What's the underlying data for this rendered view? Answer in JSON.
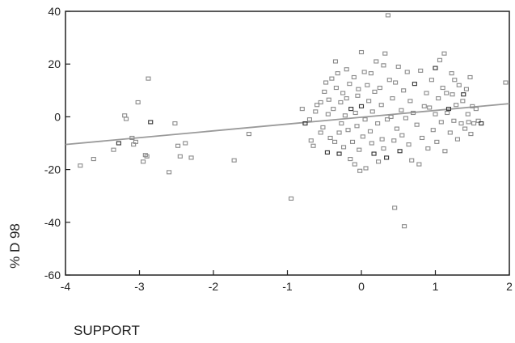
{
  "chart_data": {
    "type": "scatter",
    "title": "",
    "xlabel": "SUPPORT",
    "ylabel": "% D 98",
    "xlim": [
      -4,
      2
    ],
    "ylim": [
      -60,
      40
    ],
    "x_ticks": [
      -4,
      -3,
      -2,
      -1,
      0,
      1,
      2
    ],
    "x_tick_labels": [
      "-4",
      "-3",
      "-2",
      "-1",
      "0",
      "1",
      "2"
    ],
    "y_ticks": [
      -60,
      -40,
      -20,
      0,
      20,
      40
    ],
    "y_tick_labels": [
      "-60",
      "-40",
      "-20",
      "0",
      "20",
      "40"
    ],
    "grid": false,
    "legend": "none",
    "colors": {
      "points": "#8a8a8a",
      "points_dark": "#333333",
      "fit_line": "#9a9a9a",
      "frame": "#222222"
    },
    "fit_line": {
      "from": [
        -4,
        -10.5
      ],
      "to": [
        2,
        5
      ]
    },
    "points": [
      [
        -3.8,
        -18.5
      ],
      [
        -3.62,
        -16
      ],
      [
        -3.35,
        -12.5
      ],
      [
        -3.28,
        -10
      ],
      [
        -3.2,
        0.5
      ],
      [
        -3.18,
        -0.8
      ],
      [
        -3.1,
        -8
      ],
      [
        -3.08,
        -10.5
      ],
      [
        -3.05,
        -9.5
      ],
      [
        -3.02,
        5.5
      ],
      [
        -2.95,
        -17
      ],
      [
        -2.92,
        -14.5
      ],
      [
        -2.9,
        -15
      ],
      [
        -2.88,
        14.5
      ],
      [
        -2.85,
        -2
      ],
      [
        -2.6,
        -21
      ],
      [
        -2.52,
        -2.5
      ],
      [
        -2.48,
        -11
      ],
      [
        -2.45,
        -15
      ],
      [
        -2.38,
        -10
      ],
      [
        -2.3,
        -15.5
      ],
      [
        -1.72,
        -16.5
      ],
      [
        -1.52,
        -6.5
      ],
      [
        -0.95,
        -31
      ],
      [
        -0.8,
        3
      ],
      [
        -0.76,
        -2.5
      ],
      [
        -0.7,
        -1
      ],
      [
        -0.68,
        -9
      ],
      [
        -0.65,
        -11
      ],
      [
        -0.62,
        2
      ],
      [
        -0.6,
        4.5
      ],
      [
        -0.55,
        5.5
      ],
      [
        -0.55,
        -6
      ],
      [
        -0.52,
        -4
      ],
      [
        -0.5,
        9.5
      ],
      [
        -0.48,
        13
      ],
      [
        -0.46,
        -13.5
      ],
      [
        -0.45,
        1
      ],
      [
        -0.44,
        6.5
      ],
      [
        -0.42,
        -8
      ],
      [
        -0.4,
        14.5
      ],
      [
        -0.38,
        3
      ],
      [
        -0.36,
        -9.5
      ],
      [
        -0.35,
        21
      ],
      [
        -0.34,
        11
      ],
      [
        -0.32,
        16.5
      ],
      [
        -0.3,
        -6
      ],
      [
        -0.3,
        -14
      ],
      [
        -0.28,
        5.5
      ],
      [
        -0.27,
        -2.5
      ],
      [
        -0.25,
        9
      ],
      [
        -0.24,
        -11.5
      ],
      [
        -0.22,
        0.5
      ],
      [
        -0.2,
        18
      ],
      [
        -0.2,
        7
      ],
      [
        -0.18,
        -5
      ],
      [
        -0.16,
        12.5
      ],
      [
        -0.15,
        -16
      ],
      [
        -0.14,
        3
      ],
      [
        -0.12,
        -9.5
      ],
      [
        -0.1,
        15
      ],
      [
        -0.09,
        -18
      ],
      [
        -0.08,
        1.5
      ],
      [
        -0.06,
        -3.5
      ],
      [
        -0.05,
        8
      ],
      [
        -0.04,
        10.5
      ],
      [
        -0.03,
        -12.5
      ],
      [
        -0.02,
        -20.5
      ],
      [
        0.0,
        24.5
      ],
      [
        0.0,
        4
      ],
      [
        0.02,
        -7.5
      ],
      [
        0.04,
        17
      ],
      [
        0.05,
        -1
      ],
      [
        0.06,
        -19.5
      ],
      [
        0.08,
        12
      ],
      [
        0.1,
        6
      ],
      [
        0.12,
        -5.5
      ],
      [
        0.13,
        16.5
      ],
      [
        0.14,
        -10
      ],
      [
        0.15,
        2
      ],
      [
        0.17,
        -14
      ],
      [
        0.18,
        9.5
      ],
      [
        0.2,
        21
      ],
      [
        0.22,
        -2.5
      ],
      [
        0.23,
        -17
      ],
      [
        0.25,
        11
      ],
      [
        0.27,
        4.5
      ],
      [
        0.28,
        -8.5
      ],
      [
        0.3,
        19.5
      ],
      [
        0.3,
        -12
      ],
      [
        0.32,
        24
      ],
      [
        0.34,
        -15.5
      ],
      [
        0.35,
        -1
      ],
      [
        0.36,
        38.5
      ],
      [
        0.38,
        14
      ],
      [
        0.4,
        0
      ],
      [
        0.42,
        7
      ],
      [
        0.44,
        -9
      ],
      [
        0.45,
        -34.5
      ],
      [
        0.46,
        13
      ],
      [
        0.48,
        -4.5
      ],
      [
        0.5,
        19
      ],
      [
        0.52,
        -13
      ],
      [
        0.54,
        2.5
      ],
      [
        0.55,
        -7
      ],
      [
        0.57,
        10
      ],
      [
        0.58,
        -41.5
      ],
      [
        0.6,
        -0.5
      ],
      [
        0.62,
        17
      ],
      [
        0.64,
        -10.5
      ],
      [
        0.66,
        6
      ],
      [
        0.68,
        -16.5
      ],
      [
        0.7,
        1.5
      ],
      [
        0.72,
        12.5
      ],
      [
        0.75,
        -3
      ],
      [
        0.78,
        -18
      ],
      [
        0.8,
        17.5
      ],
      [
        0.82,
        -8
      ],
      [
        0.85,
        4
      ],
      [
        0.88,
        9
      ],
      [
        0.9,
        -12
      ],
      [
        0.92,
        3.5
      ],
      [
        0.95,
        14
      ],
      [
        0.97,
        -5
      ],
      [
        1.0,
        18.5
      ],
      [
        1.0,
        1
      ],
      [
        1.02,
        -9.5
      ],
      [
        1.04,
        7
      ],
      [
        1.06,
        21.5
      ],
      [
        1.08,
        -2
      ],
      [
        1.1,
        11
      ],
      [
        1.12,
        24
      ],
      [
        1.13,
        -13
      ],
      [
        1.15,
        9
      ],
      [
        1.16,
        1.5
      ],
      [
        1.18,
        3
      ],
      [
        1.2,
        -6
      ],
      [
        1.22,
        16.5
      ],
      [
        1.23,
        8.5
      ],
      [
        1.25,
        -1.5
      ],
      [
        1.26,
        14
      ],
      [
        1.28,
        4.5
      ],
      [
        1.3,
        -8.5
      ],
      [
        1.32,
        12
      ],
      [
        1.35,
        -2.5
      ],
      [
        1.37,
        6
      ],
      [
        1.38,
        8.5
      ],
      [
        1.4,
        -4.5
      ],
      [
        1.42,
        10.5
      ],
      [
        1.44,
        1
      ],
      [
        1.45,
        -2
      ],
      [
        1.47,
        15
      ],
      [
        1.48,
        -6.5
      ],
      [
        1.5,
        4
      ],
      [
        1.52,
        -2.5
      ],
      [
        1.55,
        3
      ],
      [
        1.58,
        -1.5
      ],
      [
        1.62,
        -2.5
      ],
      [
        1.95,
        13
      ]
    ]
  }
}
